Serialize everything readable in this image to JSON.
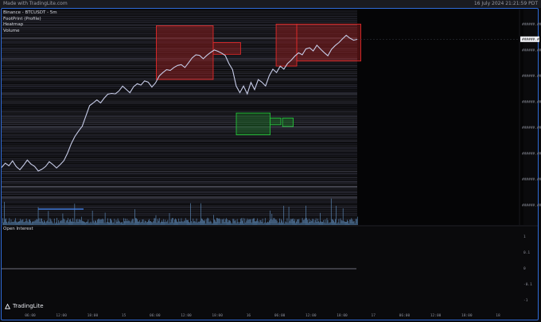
{
  "topbar": {
    "left_text": "Made with TradingLite.com",
    "right_text": "16 July 2024 21:21:59 PDT"
  },
  "legend": {
    "symbol": "Binance - BTCUSDT - 5m",
    "layers": [
      "FootPrint (Profile)",
      "Heatmap",
      "Volume"
    ]
  },
  "lower_pane": {
    "title": "Open Interest"
  },
  "brand": {
    "name": "TradingLite"
  },
  "price_axis": {
    "labels": [
      "######.##",
      "######.##",
      "######.##",
      "######.##",
      "######.##",
      "######.##",
      "######.##",
      "######.##"
    ],
    "current_price": "######.##"
  },
  "oi_axis": {
    "labels": [
      "1",
      "0.1",
      "0",
      "-0.1",
      "-1"
    ]
  },
  "time_axis": {
    "labels": [
      "06:00",
      "12:00",
      "18:00",
      "15",
      "06:00",
      "12:00",
      "18:00",
      "16",
      "06:00",
      "12:00",
      "18:00",
      "17",
      "06:00",
      "12:00",
      "18:00",
      "18"
    ]
  },
  "colors": {
    "accent": "#2f6bd8",
    "sell_zone": "#e12a2a",
    "buy_zone": "#25c13a",
    "price_line": "#c7cce8",
    "volume": "#6fa7e0"
  },
  "chart_data": {
    "type": "line",
    "series": [
      {
        "values": [
          0.12,
          0.14,
          0.13,
          0.15,
          0.12,
          0.1,
          0.13,
          0.16,
          0.14,
          0.12,
          0.09,
          0.1,
          0.12,
          0.15,
          0.13,
          0.11,
          0.13,
          0.16,
          0.2,
          0.26,
          0.3,
          0.33,
          0.36,
          0.42,
          0.48,
          0.5,
          0.52,
          0.5,
          0.53,
          0.55,
          0.56,
          0.55,
          0.57,
          0.6,
          0.58,
          0.56,
          0.6,
          0.62,
          0.61,
          0.63,
          0.62,
          0.6,
          0.62,
          0.66,
          0.68,
          0.7,
          0.69,
          0.71,
          0.72,
          0.73,
          0.71,
          0.74,
          0.77,
          0.79,
          0.78,
          0.76,
          0.78,
          0.8,
          0.82,
          0.81,
          0.8,
          0.78,
          0.74,
          0.7,
          0.6,
          0.56,
          0.6,
          0.55,
          0.62,
          0.58,
          0.64,
          0.62,
          0.6,
          0.66,
          0.7,
          0.68,
          0.72,
          0.7,
          0.74,
          0.76,
          0.78,
          0.8,
          0.79,
          0.82,
          0.83,
          0.81,
          0.84,
          0.82,
          0.8,
          0.78,
          0.82,
          0.84,
          0.86,
          0.88,
          0.9,
          0.89,
          0.87,
          0.88
        ]
      }
    ],
    "zones": [
      {
        "kind": "sell",
        "t0": 0.435,
        "t1": 0.595,
        "p0": 0.64,
        "p1": 0.96
      },
      {
        "kind": "sell",
        "t0": 0.595,
        "t1": 0.672,
        "p0": 0.79,
        "p1": 0.86
      },
      {
        "kind": "buy",
        "t0": 0.66,
        "t1": 0.755,
        "p0": 0.31,
        "p1": 0.44
      },
      {
        "kind": "buy",
        "t0": 0.755,
        "t1": 0.785,
        "p0": 0.37,
        "p1": 0.41
      },
      {
        "kind": "buy",
        "t0": 0.79,
        "t1": 0.82,
        "p0": 0.36,
        "p1": 0.41
      },
      {
        "kind": "sell",
        "t0": 0.772,
        "t1": 0.83,
        "p0": 0.72,
        "p1": 0.97
      },
      {
        "kind": "sell",
        "t0": 0.83,
        "t1": 1.01,
        "p0": 0.75,
        "p1": 0.97
      }
    ]
  }
}
